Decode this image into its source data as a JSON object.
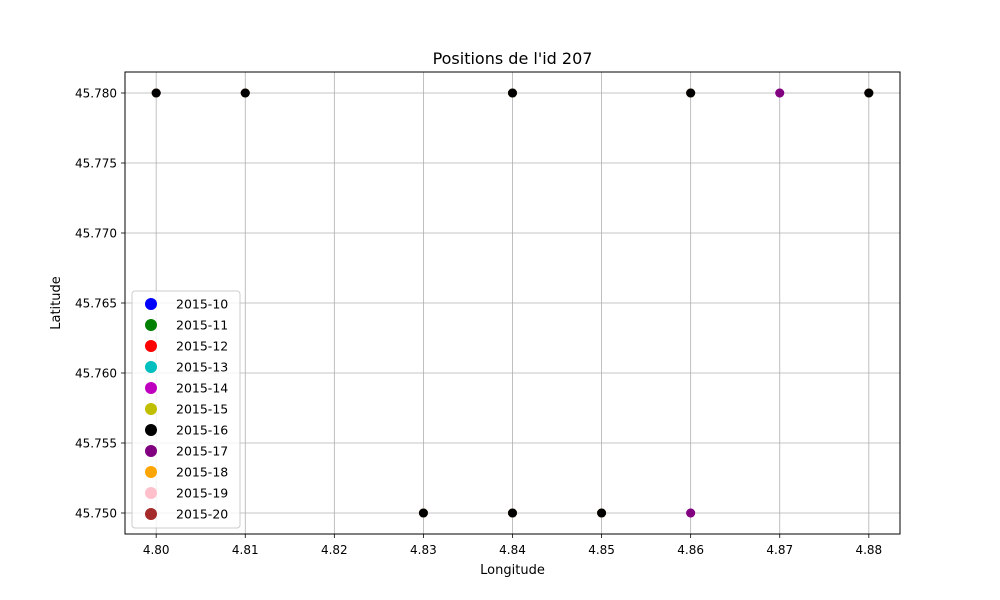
{
  "chart_data": {
    "type": "scatter",
    "title": "Positions de l'id 207",
    "xlabel": "Longitude",
    "ylabel": "Latitude",
    "xlim": [
      4.7965,
      4.8835
    ],
    "ylim": [
      45.7485,
      45.7815
    ],
    "x_ticks": [
      4.8,
      4.81,
      4.82,
      4.83,
      4.84,
      4.85,
      4.86,
      4.87,
      4.88
    ],
    "x_tick_labels": [
      "4.80",
      "4.81",
      "4.82",
      "4.83",
      "4.84",
      "4.85",
      "4.86",
      "4.87",
      "4.88"
    ],
    "y_ticks": [
      45.75,
      45.755,
      45.76,
      45.765,
      45.77,
      45.775,
      45.78
    ],
    "y_tick_labels": [
      "45.750",
      "45.755",
      "45.760",
      "45.765",
      "45.770",
      "45.775",
      "45.780"
    ],
    "grid": true,
    "legend_position": "lower-left",
    "series": [
      {
        "name": "2015-10",
        "color": "#0000ff",
        "points": [
          [
            4.8,
            45.78
          ],
          [
            4.81,
            45.78
          ],
          [
            4.84,
            45.78
          ],
          [
            4.86,
            45.78
          ],
          [
            4.88,
            45.78
          ],
          [
            4.83,
            45.75
          ],
          [
            4.84,
            45.75
          ],
          [
            4.85,
            45.75
          ]
        ]
      },
      {
        "name": "2015-11",
        "color": "#008000",
        "points": [
          [
            4.8,
            45.78
          ],
          [
            4.81,
            45.78
          ],
          [
            4.84,
            45.78
          ],
          [
            4.86,
            45.78
          ],
          [
            4.88,
            45.78
          ],
          [
            4.83,
            45.75
          ],
          [
            4.84,
            45.75
          ],
          [
            4.85,
            45.75
          ]
        ]
      },
      {
        "name": "2015-12",
        "color": "#ff0000",
        "points": [
          [
            4.8,
            45.78
          ],
          [
            4.81,
            45.78
          ],
          [
            4.84,
            45.78
          ],
          [
            4.86,
            45.78
          ],
          [
            4.88,
            45.78
          ],
          [
            4.83,
            45.75
          ],
          [
            4.84,
            45.75
          ],
          [
            4.85,
            45.75
          ]
        ]
      },
      {
        "name": "2015-13",
        "color": "#00bfbf",
        "points": [
          [
            4.8,
            45.78
          ],
          [
            4.81,
            45.78
          ],
          [
            4.84,
            45.78
          ],
          [
            4.86,
            45.78
          ],
          [
            4.88,
            45.78
          ],
          [
            4.83,
            45.75
          ],
          [
            4.84,
            45.75
          ],
          [
            4.85,
            45.75
          ]
        ]
      },
      {
        "name": "2015-14",
        "color": "#bf00bf",
        "points": [
          [
            4.8,
            45.78
          ],
          [
            4.81,
            45.78
          ],
          [
            4.84,
            45.78
          ],
          [
            4.86,
            45.78
          ],
          [
            4.87,
            45.78
          ],
          [
            4.88,
            45.78
          ],
          [
            4.83,
            45.75
          ],
          [
            4.84,
            45.75
          ],
          [
            4.85,
            45.75
          ],
          [
            4.86,
            45.75
          ]
        ]
      },
      {
        "name": "2015-15",
        "color": "#bfbf00",
        "points": [
          [
            4.8,
            45.78
          ],
          [
            4.81,
            45.78
          ],
          [
            4.84,
            45.78
          ],
          [
            4.86,
            45.78
          ],
          [
            4.88,
            45.78
          ],
          [
            4.83,
            45.75
          ],
          [
            4.84,
            45.75
          ],
          [
            4.85,
            45.75
          ]
        ]
      },
      {
        "name": "2015-16",
        "color": "#000000",
        "points": [
          [
            4.8,
            45.78
          ],
          [
            4.81,
            45.78
          ],
          [
            4.84,
            45.78
          ],
          [
            4.86,
            45.78
          ],
          [
            4.88,
            45.78
          ],
          [
            4.83,
            45.75
          ],
          [
            4.84,
            45.75
          ],
          [
            4.85,
            45.75
          ]
        ]
      },
      {
        "name": "2015-17",
        "color": "#800080",
        "points": [
          [
            4.87,
            45.78
          ],
          [
            4.86,
            45.75
          ]
        ]
      },
      {
        "name": "2015-18",
        "color": "#ffa500",
        "points": []
      },
      {
        "name": "2015-19",
        "color": "#ffc0cb",
        "points": []
      },
      {
        "name": "2015-20",
        "color": "#a52a2a",
        "points": []
      }
    ]
  }
}
